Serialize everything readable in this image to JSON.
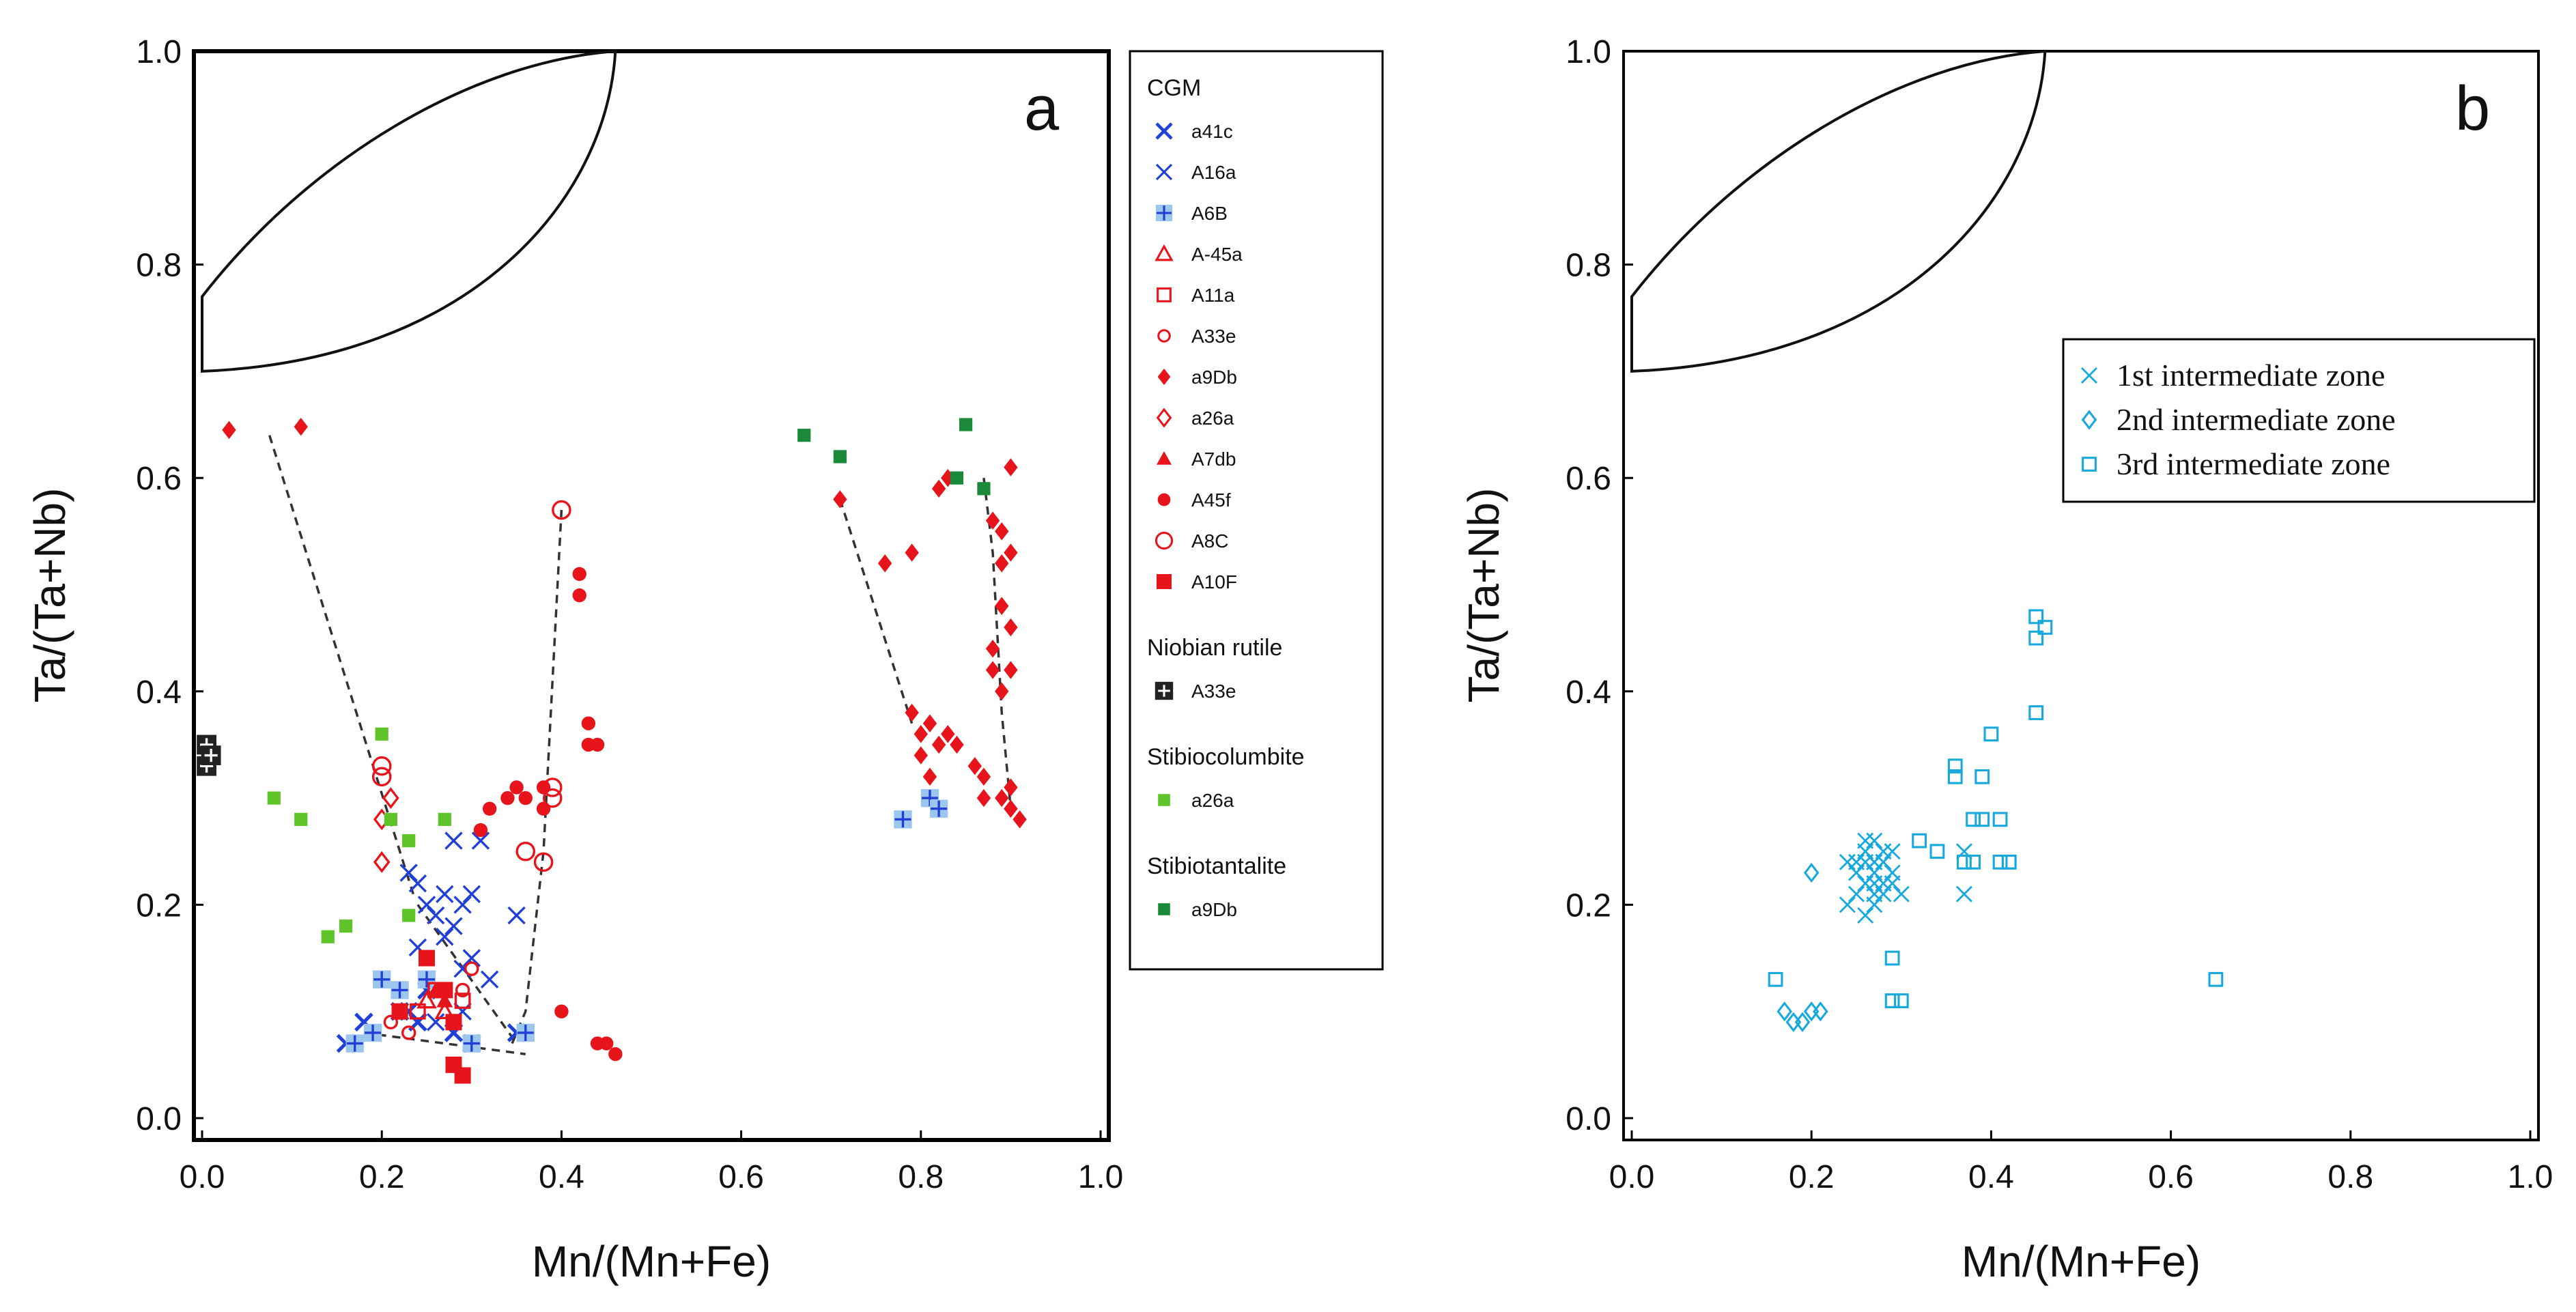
{
  "chart_data": [
    {
      "panel": "a",
      "type": "scatter",
      "xlabel": "Mn/(Mn+Fe)",
      "ylabel": "Ta/(Ta+Nb)",
      "xlim": [
        0,
        1
      ],
      "ylim": [
        0,
        1
      ],
      "xticks": [
        "0.0",
        "0.2",
        "0.4",
        "0.6",
        "0.8",
        "1.0"
      ],
      "yticks": [
        "0.0",
        "0.2",
        "0.4",
        "0.6",
        "0.8",
        "1.0"
      ],
      "grid": false,
      "legend_position": "right",
      "legend_groups": [
        {
          "title": "CGM",
          "items": [
            "a41c",
            "A16a",
            "A6B",
            "A-45a",
            "A11a",
            "A33e",
            "a9Db",
            "a26a",
            "A7db",
            "A45f",
            "A8C",
            "A10F"
          ]
        },
        {
          "title": "Niobian rutile",
          "items": [
            "A33e"
          ]
        },
        {
          "title": "Stibiocolumbite",
          "items": [
            "a26a"
          ]
        },
        {
          "title": "Stibiotantalite",
          "items": [
            "a9Db"
          ]
        }
      ],
      "series": [
        {
          "name": "a41c",
          "group": "CGM",
          "marker": "bold-x",
          "color": "#1f3fd6",
          "x": [
            0.16,
            0.18,
            0.22,
            0.23,
            0.24,
            0.25,
            0.28,
            0.3,
            0.35
          ],
          "y": [
            0.07,
            0.09,
            0.1,
            0.1,
            0.09,
            0.12,
            0.08,
            0.07,
            0.08
          ]
        },
        {
          "name": "A16a",
          "group": "CGM",
          "marker": "x",
          "color": "#1f3fd6",
          "x": [
            0.23,
            0.24,
            0.24,
            0.25,
            0.26,
            0.27,
            0.28,
            0.28,
            0.29,
            0.29,
            0.3,
            0.3,
            0.31,
            0.32,
            0.35,
            0.25,
            0.27,
            0.26,
            0.29
          ],
          "y": [
            0.23,
            0.22,
            0.16,
            0.2,
            0.19,
            0.21,
            0.18,
            0.26,
            0.2,
            0.14,
            0.21,
            0.15,
            0.26,
            0.13,
            0.19,
            0.12,
            0.17,
            0.09,
            0.1
          ]
        },
        {
          "name": "A6B",
          "group": "CGM",
          "marker": "plus-box",
          "color": "#1f3fd6",
          "x": [
            0.17,
            0.19,
            0.2,
            0.22,
            0.25,
            0.3,
            0.36,
            0.78,
            0.81,
            0.82
          ],
          "y": [
            0.07,
            0.08,
            0.13,
            0.12,
            0.13,
            0.07,
            0.08,
            0.28,
            0.3,
            0.29
          ]
        },
        {
          "name": "A-45a",
          "group": "CGM",
          "marker": "triangle-open",
          "color": "#e8141c",
          "x": [
            0.25,
            0.27
          ],
          "y": [
            0.11,
            0.1
          ]
        },
        {
          "name": "A11a",
          "group": "CGM",
          "marker": "square-open",
          "color": "#e8141c",
          "x": [
            0.24,
            0.26,
            0.29
          ],
          "y": [
            0.1,
            0.12,
            0.11
          ]
        },
        {
          "name": "A33e",
          "group": "CGM",
          "marker": "circle-open-small",
          "color": "#e8141c",
          "x": [
            0.21,
            0.23,
            0.29,
            0.3
          ],
          "y": [
            0.09,
            0.08,
            0.12,
            0.14
          ]
        },
        {
          "name": "a9Db",
          "group": "CGM",
          "marker": "diamond-filled",
          "color": "#e8141c",
          "x": [
            0.03,
            0.11,
            0.71,
            0.76,
            0.79,
            0.79,
            0.8,
            0.8,
            0.81,
            0.81,
            0.82,
            0.82,
            0.83,
            0.83,
            0.84,
            0.86,
            0.87,
            0.87,
            0.88,
            0.88,
            0.88,
            0.89,
            0.89,
            0.89,
            0.89,
            0.9,
            0.9,
            0.9,
            0.9,
            0.9,
            0.9,
            0.91,
            0.89,
            0.9
          ],
          "y": [
            0.645,
            0.648,
            0.58,
            0.52,
            0.53,
            0.38,
            0.36,
            0.34,
            0.37,
            0.32,
            0.59,
            0.35,
            0.6,
            0.36,
            0.35,
            0.33,
            0.32,
            0.3,
            0.44,
            0.42,
            0.56,
            0.55,
            0.52,
            0.48,
            0.4,
            0.61,
            0.53,
            0.46,
            0.42,
            0.31,
            0.29,
            0.28,
            0.3,
            0.29
          ]
        },
        {
          "name": "a26a",
          "group": "CGM",
          "marker": "diamond-open",
          "color": "#e8141c",
          "x": [
            0.2,
            0.2,
            0.21
          ],
          "y": [
            0.24,
            0.28,
            0.3
          ]
        },
        {
          "name": "A7db",
          "group": "CGM",
          "marker": "triangle-filled",
          "color": "#e8141c",
          "x": [
            0.26,
            0.27
          ],
          "y": [
            0.12,
            0.11
          ]
        },
        {
          "name": "A45f",
          "group": "CGM",
          "marker": "circle-filled",
          "color": "#e8141c",
          "x": [
            0.31,
            0.32,
            0.34,
            0.35,
            0.36,
            0.38,
            0.38,
            0.4,
            0.42,
            0.42,
            0.43,
            0.43,
            0.44,
            0.44,
            0.45,
            0.46
          ],
          "y": [
            0.27,
            0.29,
            0.3,
            0.31,
            0.3,
            0.31,
            0.29,
            0.1,
            0.51,
            0.49,
            0.37,
            0.35,
            0.07,
            0.35,
            0.07,
            0.06
          ]
        },
        {
          "name": "A8C",
          "group": "CGM",
          "marker": "circle-open",
          "color": "#e8141c",
          "x": [
            0.2,
            0.2,
            0.36,
            0.38,
            0.39,
            0.39,
            0.4
          ],
          "y": [
            0.33,
            0.32,
            0.25,
            0.24,
            0.3,
            0.31,
            0.57
          ]
        },
        {
          "name": "A10F",
          "group": "CGM",
          "marker": "square-filled",
          "color": "#e8141c",
          "x": [
            0.22,
            0.25,
            0.27,
            0.28,
            0.28,
            0.29
          ],
          "y": [
            0.1,
            0.15,
            0.12,
            0.09,
            0.05,
            0.04
          ]
        },
        {
          "name": "A33e",
          "group": "Niobian rutile",
          "marker": "plus-box-dark",
          "color": "#222222",
          "x": [
            0.005,
            0.005,
            0.01
          ],
          "y": [
            0.33,
            0.35,
            0.34
          ]
        },
        {
          "name": "a26a",
          "group": "Stibiocolumbite",
          "marker": "square-filled-small",
          "color": "#5fc42a",
          "x": [
            0.08,
            0.11,
            0.14,
            0.16,
            0.2,
            0.21,
            0.23,
            0.23,
            0.27
          ],
          "y": [
            0.3,
            0.28,
            0.17,
            0.18,
            0.36,
            0.28,
            0.26,
            0.19,
            0.28
          ]
        },
        {
          "name": "a9Db",
          "group": "Stibiotantalite",
          "marker": "square-filled-small",
          "color": "#1a8a3a",
          "x": [
            0.67,
            0.71,
            0.84,
            0.85,
            0.87
          ],
          "y": [
            0.64,
            0.62,
            0.6,
            0.65,
            0.59
          ]
        }
      ],
      "trend_lines": [
        {
          "x": [
            0.075,
            0.235
          ],
          "y": [
            0.64,
            0.21
          ]
        },
        {
          "x": [
            0.345,
            0.36,
            0.38,
            0.4
          ],
          "y": [
            0.07,
            0.1,
            0.25,
            0.57
          ]
        },
        {
          "x": [
            0.71,
            0.79
          ],
          "y": [
            0.58,
            0.37
          ]
        },
        {
          "x": [
            0.87,
            0.88,
            0.89,
            0.9
          ],
          "y": [
            0.6,
            0.53,
            0.38,
            0.29
          ]
        },
        {
          "x": [
            0.18,
            0.36
          ],
          "y": [
            0.08,
            0.06
          ]
        },
        {
          "x": [
            0.24,
            0.35
          ],
          "y": [
            0.2,
            0.07
          ]
        }
      ],
      "outline_shapes": [
        {
          "kind": "lens",
          "x": [
            0.0,
            0.12,
            0.3,
            0.45,
            0.46,
            0.45,
            0.3,
            0.1,
            0.0
          ],
          "y": [
            0.77,
            0.86,
            0.95,
            1.0,
            1.0,
            0.9,
            0.8,
            0.7,
            0.7
          ]
        }
      ]
    },
    {
      "panel": "b",
      "type": "scatter",
      "xlabel": "Mn/(Mn+Fe)",
      "ylabel": "Ta/(Ta+Nb)",
      "xlim": [
        0,
        1
      ],
      "ylim": [
        0,
        1
      ],
      "xticks": [
        "0.0",
        "0.2",
        "0.4",
        "0.6",
        "0.8",
        "1.0"
      ],
      "yticks": [
        "0.0",
        "0.2",
        "0.4",
        "0.6",
        "0.8",
        "1.0"
      ],
      "grid": false,
      "legend_position": "top-right",
      "series": [
        {
          "name": "1st intermediate zone",
          "marker": "small-x",
          "color": "#17a8dd",
          "x": [
            0.24,
            0.25,
            0.25,
            0.26,
            0.26,
            0.26,
            0.27,
            0.27,
            0.27,
            0.27,
            0.27,
            0.28,
            0.28,
            0.28,
            0.28,
            0.29,
            0.29,
            0.26,
            0.25,
            0.27,
            0.28,
            0.3,
            0.37,
            0.37,
            0.26,
            0.27,
            0.29,
            0.24
          ],
          "y": [
            0.2,
            0.21,
            0.24,
            0.22,
            0.24,
            0.25,
            0.23,
            0.24,
            0.26,
            0.22,
            0.21,
            0.25,
            0.24,
            0.22,
            0.21,
            0.23,
            0.25,
            0.19,
            0.23,
            0.2,
            0.24,
            0.21,
            0.25,
            0.21,
            0.26,
            0.24,
            0.22,
            0.24
          ]
        },
        {
          "name": "2nd intermediate zone",
          "marker": "diamond-open",
          "color": "#17a8dd",
          "x": [
            0.17,
            0.18,
            0.19,
            0.2,
            0.21,
            0.2
          ],
          "y": [
            0.1,
            0.09,
            0.09,
            0.1,
            0.1,
            0.23
          ]
        },
        {
          "name": "3rd intermediate zone",
          "marker": "square-open",
          "color": "#17a8dd",
          "x": [
            0.16,
            0.29,
            0.29,
            0.3,
            0.32,
            0.34,
            0.36,
            0.36,
            0.37,
            0.38,
            0.38,
            0.39,
            0.39,
            0.4,
            0.41,
            0.41,
            0.42,
            0.42,
            0.45,
            0.45,
            0.45,
            0.46,
            0.65
          ],
          "y": [
            0.13,
            0.15,
            0.11,
            0.11,
            0.26,
            0.25,
            0.32,
            0.33,
            0.24,
            0.24,
            0.28,
            0.32,
            0.28,
            0.36,
            0.24,
            0.28,
            0.24,
            0.24,
            0.38,
            0.45,
            0.47,
            0.46,
            0.13
          ]
        }
      ],
      "outline_shapes": [
        {
          "kind": "lens",
          "x": [
            0.0,
            0.12,
            0.3,
            0.45,
            0.46,
            0.45,
            0.3,
            0.1,
            0.0
          ],
          "y": [
            0.77,
            0.86,
            0.95,
            1.0,
            1.0,
            0.9,
            0.8,
            0.7,
            0.7
          ]
        }
      ]
    }
  ]
}
